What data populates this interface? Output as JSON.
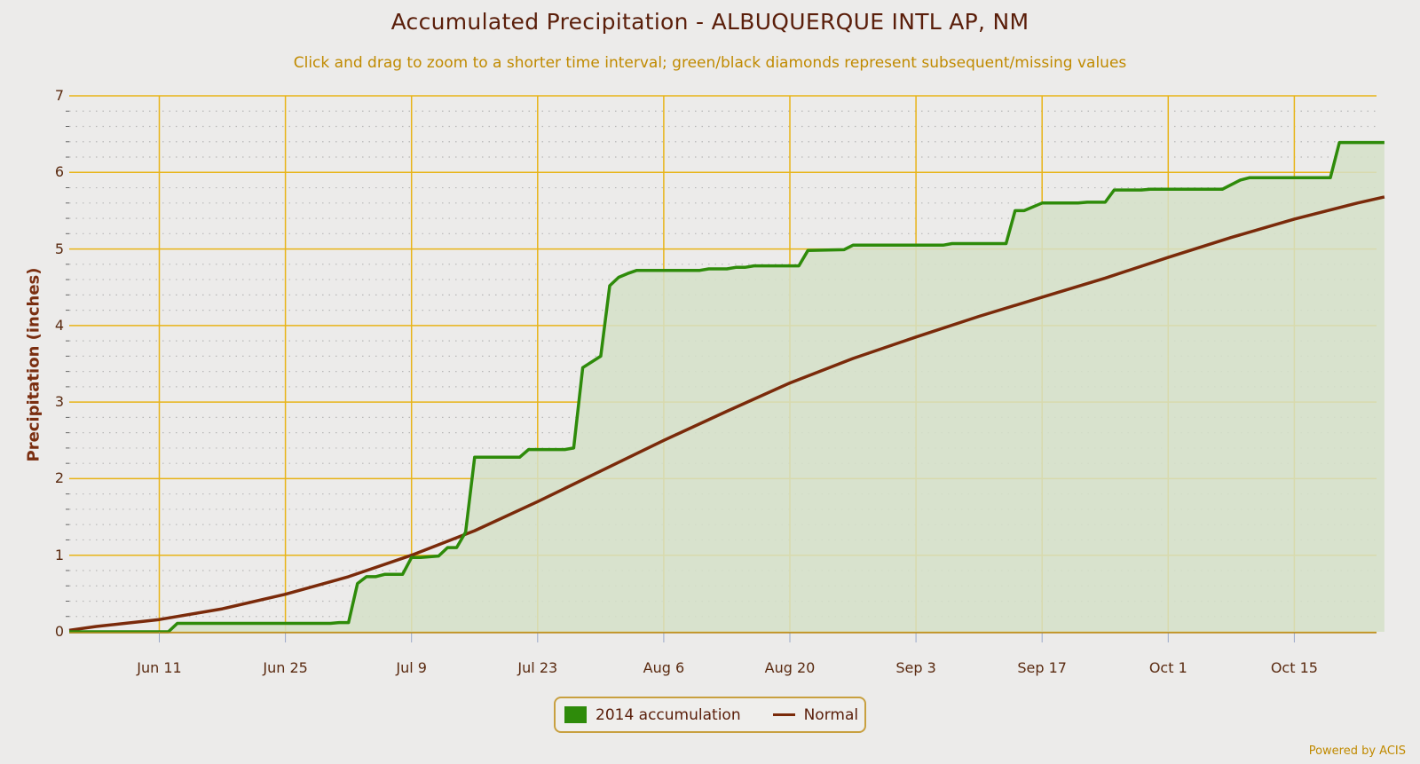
{
  "title": "Accumulated Precipitation - ALBUQUERQUE INTL AP, NM",
  "subtitle": "Click and drag to zoom to a shorter time interval; green/black diamonds represent subsequent/missing values",
  "credits": "Powered by ACIS",
  "legend": {
    "items": [
      {
        "label": "2014 accumulation",
        "icon": "green-square-swatch",
        "color": "#2e8b0a"
      },
      {
        "label": "Normal",
        "icon": "brown-line-swatch",
        "color": "#7a2a0a"
      }
    ]
  },
  "colors": {
    "accumulation_line": "#2e8b0a",
    "accumulation_fill": "#d5e0c8",
    "normal_line": "#7a2a0a",
    "major_grid": "#e8b418",
    "minor_grid": "#b8b8b8",
    "background": "#ecebea"
  },
  "axes": {
    "ylabel": "Precipitation (inches)",
    "yticks": [
      "0",
      "1",
      "2",
      "3",
      "4",
      "5",
      "6",
      "7"
    ],
    "xticks": [
      "Jun 11",
      "Jun 25",
      "Jul 9",
      "Jul 23",
      "Aug 6",
      "Aug 20",
      "Sep 3",
      "Sep 17",
      "Oct 1",
      "Oct 15"
    ]
  },
  "chart_data": {
    "type": "area",
    "title": "Accumulated Precipitation - ALBUQUERQUE INTL AP, NM",
    "subtitle": "Click and drag to zoom to a shorter time interval; green/black diamonds represent subsequent/missing values",
    "xlabel": "",
    "ylabel": "Precipitation (inches)",
    "ylim": [
      0,
      7
    ],
    "xrange": [
      "Jun 1",
      "Oct 25"
    ],
    "grid": true,
    "legend_position": "bottom-center",
    "xtick_labels": [
      "Jun 11",
      "Jun 25",
      "Jul 9",
      "Jul 23",
      "Aug 6",
      "Aug 20",
      "Sep 3",
      "Sep 17",
      "Oct 1",
      "Oct 15"
    ],
    "ytick_labels": [
      0,
      1,
      2,
      3,
      4,
      5,
      6,
      7
    ],
    "series": [
      {
        "name": "2014 accumulation",
        "type": "area",
        "color": "#2e8b0a",
        "points": [
          [
            "Jun 1",
            0.0
          ],
          [
            "Jun 12",
            0.0
          ],
          [
            "Jun 13",
            0.11
          ],
          [
            "Jun 30",
            0.11
          ],
          [
            "Jul 1",
            0.12
          ],
          [
            "Jul 2",
            0.12
          ],
          [
            "Jul 3",
            0.63
          ],
          [
            "Jul 4",
            0.72
          ],
          [
            "Jul 5",
            0.72
          ],
          [
            "Jul 6",
            0.75
          ],
          [
            "Jul 8",
            0.75
          ],
          [
            "Jul 9",
            0.97
          ],
          [
            "Jul 10",
            0.97
          ],
          [
            "Jul 12",
            0.99
          ],
          [
            "Jul 13",
            1.1
          ],
          [
            "Jul 14",
            1.1
          ],
          [
            "Jul 15",
            1.3
          ],
          [
            "Jul 16",
            2.28
          ],
          [
            "Jul 21",
            2.28
          ],
          [
            "Jul 22",
            2.38
          ],
          [
            "Jul 26",
            2.38
          ],
          [
            "Jul 27",
            2.4
          ],
          [
            "Jul 28",
            3.45
          ],
          [
            "Jul 30",
            3.6
          ],
          [
            "Jul 31",
            4.52
          ],
          [
            "Aug 1",
            4.63
          ],
          [
            "Aug 2",
            4.68
          ],
          [
            "Aug 3",
            4.72
          ],
          [
            "Aug 10",
            4.72
          ],
          [
            "Aug 11",
            4.74
          ],
          [
            "Aug 13",
            4.74
          ],
          [
            "Aug 14",
            4.76
          ],
          [
            "Aug 15",
            4.76
          ],
          [
            "Aug 16",
            4.78
          ],
          [
            "Aug 21",
            4.78
          ],
          [
            "Aug 22",
            4.98
          ],
          [
            "Aug 26",
            4.99
          ],
          [
            "Aug 27",
            5.05
          ],
          [
            "Sep 6",
            5.05
          ],
          [
            "Sep 7",
            5.07
          ],
          [
            "Sep 13",
            5.07
          ],
          [
            "Sep 14",
            5.5
          ],
          [
            "Sep 15",
            5.5
          ],
          [
            "Sep 17",
            5.6
          ],
          [
            "Sep 21",
            5.6
          ],
          [
            "Sep 22",
            5.61
          ],
          [
            "Sep 24",
            5.61
          ],
          [
            "Sep 25",
            5.77
          ],
          [
            "Sep 28",
            5.77
          ],
          [
            "Sep 29",
            5.78
          ],
          [
            "Oct 7",
            5.78
          ],
          [
            "Oct 9",
            5.9
          ],
          [
            "Oct 10",
            5.93
          ],
          [
            "Oct 19",
            5.93
          ],
          [
            "Oct 20",
            6.39
          ],
          [
            "Oct 25",
            6.39
          ]
        ]
      },
      {
        "name": "Normal",
        "type": "line",
        "color": "#7a2a0a",
        "points": [
          [
            "Jun 1",
            0.02
          ],
          [
            "Jun 4",
            0.07
          ],
          [
            "Jun 11",
            0.16
          ],
          [
            "Jun 18",
            0.3
          ],
          [
            "Jun 25",
            0.49
          ],
          [
            "Jul 2",
            0.72
          ],
          [
            "Jul 9",
            1.0
          ],
          [
            "Jul 16",
            1.32
          ],
          [
            "Jul 23",
            1.7
          ],
          [
            "Jul 30",
            2.1
          ],
          [
            "Aug 6",
            2.5
          ],
          [
            "Aug 13",
            2.88
          ],
          [
            "Aug 20",
            3.25
          ],
          [
            "Aug 27",
            3.57
          ],
          [
            "Sep 3",
            3.85
          ],
          [
            "Sep 10",
            4.12
          ],
          [
            "Sep 17",
            4.37
          ],
          [
            "Sep 24",
            4.62
          ],
          [
            "Oct 1",
            4.89
          ],
          [
            "Oct 8",
            5.15
          ],
          [
            "Oct 15",
            5.39
          ],
          [
            "Oct 22",
            5.6
          ],
          [
            "Oct 25",
            5.68
          ]
        ]
      }
    ]
  }
}
